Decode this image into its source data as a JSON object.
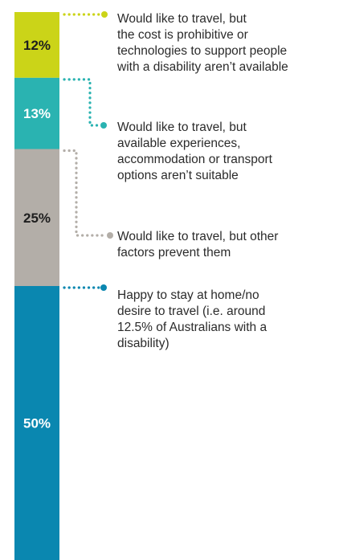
{
  "chart_data": {
    "type": "stacked-bar",
    "unit": "%",
    "segments": [
      {
        "value": 12,
        "label": "12%",
        "color": "#cbd418",
        "text_color": "#1e1e1e",
        "annotation": [
          "Would like to travel, but",
          "the cost is prohibitive or",
          "technologies to support people",
          "with a disability aren’t available"
        ]
      },
      {
        "value": 13,
        "label": "13%",
        "color": "#2ab3b1",
        "text_color": "#ffffff",
        "annotation": [
          "Would like to travel, but",
          "available experiences,",
          "accommodation or transport",
          "options aren’t suitable"
        ]
      },
      {
        "value": 25,
        "label": "25%",
        "color": "#b3aea8",
        "text_color": "#1e1e1e",
        "annotation": [
          "Would like to travel, but other",
          "factors prevent them"
        ]
      },
      {
        "value": 50,
        "label": "50%",
        "color": "#0a87b0",
        "text_color": "#ffffff",
        "annotation": [
          "Happy to stay at home/no",
          "desire to travel (i.e. around",
          "12.5% of Australians with a",
          "disability)"
        ]
      }
    ]
  }
}
